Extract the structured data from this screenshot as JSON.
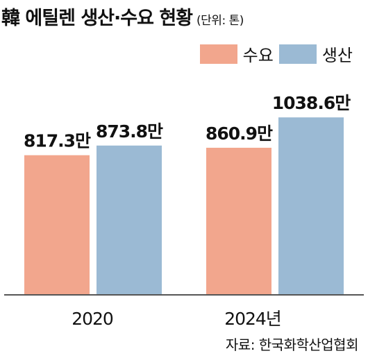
{
  "header": {
    "title": "韓 에틸렌 생산·수요 현황",
    "unit": "(단위: 톤)"
  },
  "colors": {
    "demand": "#f2a68d",
    "production": "#9bbad4",
    "axis": "#555555"
  },
  "source": "자료: 한국화학산업협회",
  "chart_data": {
    "type": "bar",
    "title": "韓 에틸렌 생산·수요 현황",
    "unit": "(단위: 톤)",
    "categories": [
      "2020",
      "2024년"
    ],
    "series": [
      {
        "name": "수요",
        "values": [
          817.3,
          860.9
        ],
        "labels": [
          "817.3만",
          "860.9만"
        ]
      },
      {
        "name": "생산",
        "values": [
          873.8,
          1038.6
        ],
        "labels": [
          "873.8만",
          "1038.6만"
        ]
      }
    ],
    "legend_position": "top-right",
    "grid": false
  }
}
